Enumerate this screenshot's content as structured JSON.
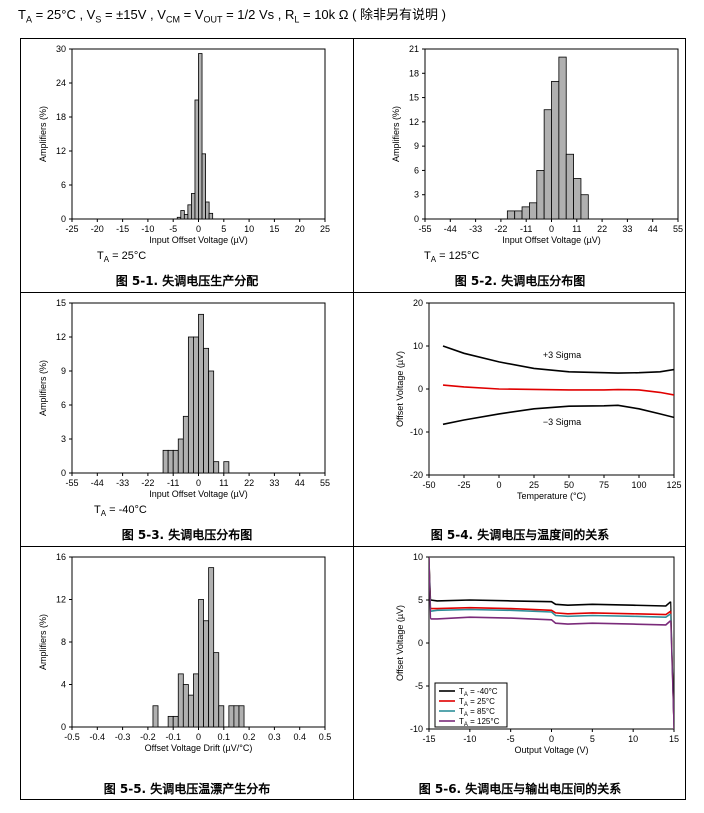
{
  "header": {
    "ta_sym": "T",
    "ta_sub": "A",
    "ta_val": " = 25°C , ",
    "vs_sym": "V",
    "vs_sub": "S",
    "vs_val": " = ±15V , ",
    "vcm_sym": "V",
    "vcm_sub": "CM",
    "vcm_mid": " = V",
    "vout_sub": "OUT",
    "vcm_val": " = 1/2 Vs , ",
    "rl_sym": "R",
    "rl_sub": "L",
    "rl_val": " = 10k Ω ",
    "note": "( 除非另有说明 )"
  },
  "chart_data": [
    {
      "id": "fig1",
      "type": "bar",
      "caption": "图 5-1. 失调电压生产分配",
      "xlabel": "Input Offset Voltage (µV)",
      "ylabel": "Amplifiers (%)",
      "xlim": [
        -25,
        25
      ],
      "ylim": [
        0,
        30
      ],
      "xticks": [
        -25,
        -20,
        -15,
        -10,
        -5,
        0,
        5,
        10,
        15,
        20,
        25
      ],
      "yticks": [
        0,
        6,
        12,
        18,
        24,
        30
      ],
      "bar_width": 0.7,
      "x": [
        -3.85,
        -3.15,
        -2.45,
        -1.75,
        -1.05,
        -0.35,
        0.35,
        1.05,
        1.75,
        2.45
      ],
      "values": [
        0.3,
        1.5,
        0.8,
        2.5,
        4.5,
        21,
        29.2,
        11.5,
        3.0,
        1.0
      ],
      "condition": {
        "sym": "T",
        "sub": "A",
        "val": " = 25°C"
      }
    },
    {
      "id": "fig2",
      "type": "bar",
      "caption": "图 5-2. 失调电压分布图",
      "xlabel": "Input Offset Voltage (µV)",
      "ylabel": "Amplifiers (%)",
      "xlim": [
        -55,
        55
      ],
      "ylim": [
        0,
        21
      ],
      "xticks": [
        -55,
        -44,
        -33,
        -22,
        -11,
        0,
        11,
        22,
        33,
        44,
        55
      ],
      "yticks": [
        0,
        3,
        6,
        9,
        12,
        15,
        18,
        21
      ],
      "bar_width": 3.2,
      "x": [
        -17.6,
        -14.4,
        -11.2,
        -8.0,
        -4.8,
        -1.6,
        1.6,
        4.8,
        8.0,
        11.2,
        14.4
      ],
      "values": [
        1,
        1,
        1.5,
        2,
        6,
        13.5,
        17,
        20,
        8,
        5,
        3
      ],
      "condition": {
        "sym": "T",
        "sub": "A",
        "val": " = 125°C"
      }
    },
    {
      "id": "fig3",
      "type": "bar",
      "caption": "图 5-3. 失调电压分布图",
      "xlabel": "Input Offset Voltage (µV)",
      "ylabel": "Amplifiers (%)",
      "xlim": [
        -55,
        55
      ],
      "ylim": [
        0,
        15
      ],
      "xticks": [
        -55,
        -44,
        -33,
        -22,
        -11,
        0,
        11,
        22,
        33,
        44,
        55
      ],
      "yticks": [
        0,
        3,
        6,
        9,
        12,
        15
      ],
      "bar_width": 2.2,
      "x": [
        -14.3,
        -12.1,
        -9.9,
        -7.7,
        -5.5,
        -3.3,
        -1.1,
        1.1,
        3.3,
        5.5,
        7.7,
        12.1
      ],
      "values": [
        2,
        2,
        2,
        3,
        5,
        12,
        12,
        14,
        11,
        9,
        1,
        1
      ],
      "condition": {
        "sym": "T",
        "sub": "A",
        "val": " = -40°C"
      }
    },
    {
      "id": "fig4",
      "type": "line",
      "caption": "图 5-4. 失调电压与温度间的关系",
      "xlabel": "Temperature (°C)",
      "ylabel": "Offset Voltage (µV)",
      "xlim": [
        -50,
        125
      ],
      "ylim": [
        -20,
        20
      ],
      "xticks": [
        -50,
        -25,
        0,
        25,
        50,
        75,
        100,
        125
      ],
      "yticks": [
        -20,
        -10,
        0,
        10,
        20
      ],
      "annotations": [
        {
          "text": "+3 Sigma",
          "x": 45,
          "y": 7.2
        },
        {
          "text": "−3 Sigma",
          "x": 45,
          "y": -8.4
        }
      ],
      "series": [
        {
          "name": "+3 Sigma",
          "color": "#000000",
          "x": [
            -40,
            -25,
            0,
            25,
            50,
            75,
            85,
            100,
            115,
            125
          ],
          "y": [
            10,
            8.3,
            6.3,
            4.8,
            4,
            3.8,
            3.7,
            3.8,
            4.0,
            4.5
          ]
        },
        {
          "name": "Mean",
          "color": "#e00000",
          "x": [
            -40,
            -25,
            0,
            25,
            50,
            75,
            85,
            100,
            115,
            125
          ],
          "y": [
            0.9,
            0.5,
            0,
            -0.1,
            -0.2,
            -0.2,
            -0.15,
            -0.2,
            -0.8,
            -1.4
          ]
        },
        {
          "name": "-3 Sigma",
          "color": "#000000",
          "x": [
            -40,
            -25,
            0,
            25,
            50,
            75,
            85,
            100,
            115,
            125
          ],
          "y": [
            -8.2,
            -7.2,
            -5.8,
            -4.6,
            -4.0,
            -3.9,
            -3.8,
            -4.6,
            -5.8,
            -6.6
          ]
        }
      ]
    },
    {
      "id": "fig5",
      "type": "bar",
      "caption": "图 5-5. 失调电压温漂产生分布",
      "xlabel": "Offset Voltage Drift (µV/°C)",
      "ylabel": "Amplifiers (%)",
      "xlim": [
        -0.5,
        0.5
      ],
      "ylim": [
        0,
        16
      ],
      "xticks": [
        -0.5,
        -0.4,
        -0.3,
        -0.2,
        -0.1,
        0,
        0.1,
        0.2,
        0.3,
        0.4,
        0.5
      ],
      "yticks": [
        0,
        4,
        8,
        12,
        16
      ],
      "bar_width": 0.02,
      "x": [
        -0.17,
        -0.11,
        -0.09,
        -0.07,
        -0.05,
        -0.03,
        -0.01,
        0.01,
        0.03,
        0.05,
        0.07,
        0.09,
        0.13,
        0.15,
        0.17
      ],
      "values": [
        2,
        1,
        1,
        5,
        4,
        3,
        5,
        12,
        10,
        15,
        7,
        2,
        2,
        2,
        2
      ]
    },
    {
      "id": "fig6",
      "type": "line",
      "caption": "图 5-6. 失调电压与输出电压间的关系",
      "xlabel": "Output Voltage (V)",
      "ylabel": "Offset Voltage (µV)",
      "xlim": [
        -15,
        15
      ],
      "ylim": [
        -10,
        10
      ],
      "xticks": [
        -15,
        -10,
        -5,
        0,
        5,
        10,
        15
      ],
      "yticks": [
        -10,
        -5,
        0,
        5,
        10
      ],
      "legend": {
        "placement": "bottom-left"
      },
      "series": [
        {
          "name": "T",
          "sub": "A",
          "suffix": " = -40°C",
          "color": "#000000",
          "x": [
            -14.8,
            -14,
            -10,
            -5,
            0,
            0.5,
            2,
            5,
            10,
            14,
            14.6
          ],
          "y": [
            5.0,
            4.9,
            5.0,
            4.9,
            4.8,
            4.5,
            4.4,
            4.5,
            4.4,
            4.3,
            4.8
          ]
        },
        {
          "name": "T",
          "sub": "A",
          "suffix": " = 25°C",
          "color": "#e00000",
          "x": [
            -14.8,
            -14,
            -10,
            -5,
            0,
            0.5,
            2,
            5,
            10,
            14,
            14.6
          ],
          "y": [
            4.0,
            4.0,
            4.1,
            4.0,
            3.8,
            3.5,
            3.4,
            3.5,
            3.4,
            3.3,
            3.7
          ]
        },
        {
          "name": "T",
          "sub": "A",
          "suffix": " = 85°C",
          "color": "#2f8f9a",
          "x": [
            -14.8,
            -14,
            -10,
            -5,
            0,
            0.5,
            2,
            5,
            10,
            14,
            14.6
          ],
          "y": [
            3.7,
            3.8,
            3.9,
            3.8,
            3.6,
            3.2,
            3.1,
            3.2,
            3.1,
            3.0,
            3.4
          ]
        },
        {
          "name": "T",
          "sub": "A",
          "suffix": " = 125°C",
          "color": "#7a2a7a",
          "x": [
            -14.8,
            -14,
            -10,
            -5,
            0,
            0.5,
            2,
            5,
            10,
            14,
            14.6
          ],
          "y": [
            2.8,
            2.8,
            3.0,
            2.9,
            2.7,
            2.3,
            2.2,
            2.3,
            2.2,
            2.1,
            2.6
          ]
        }
      ]
    }
  ]
}
